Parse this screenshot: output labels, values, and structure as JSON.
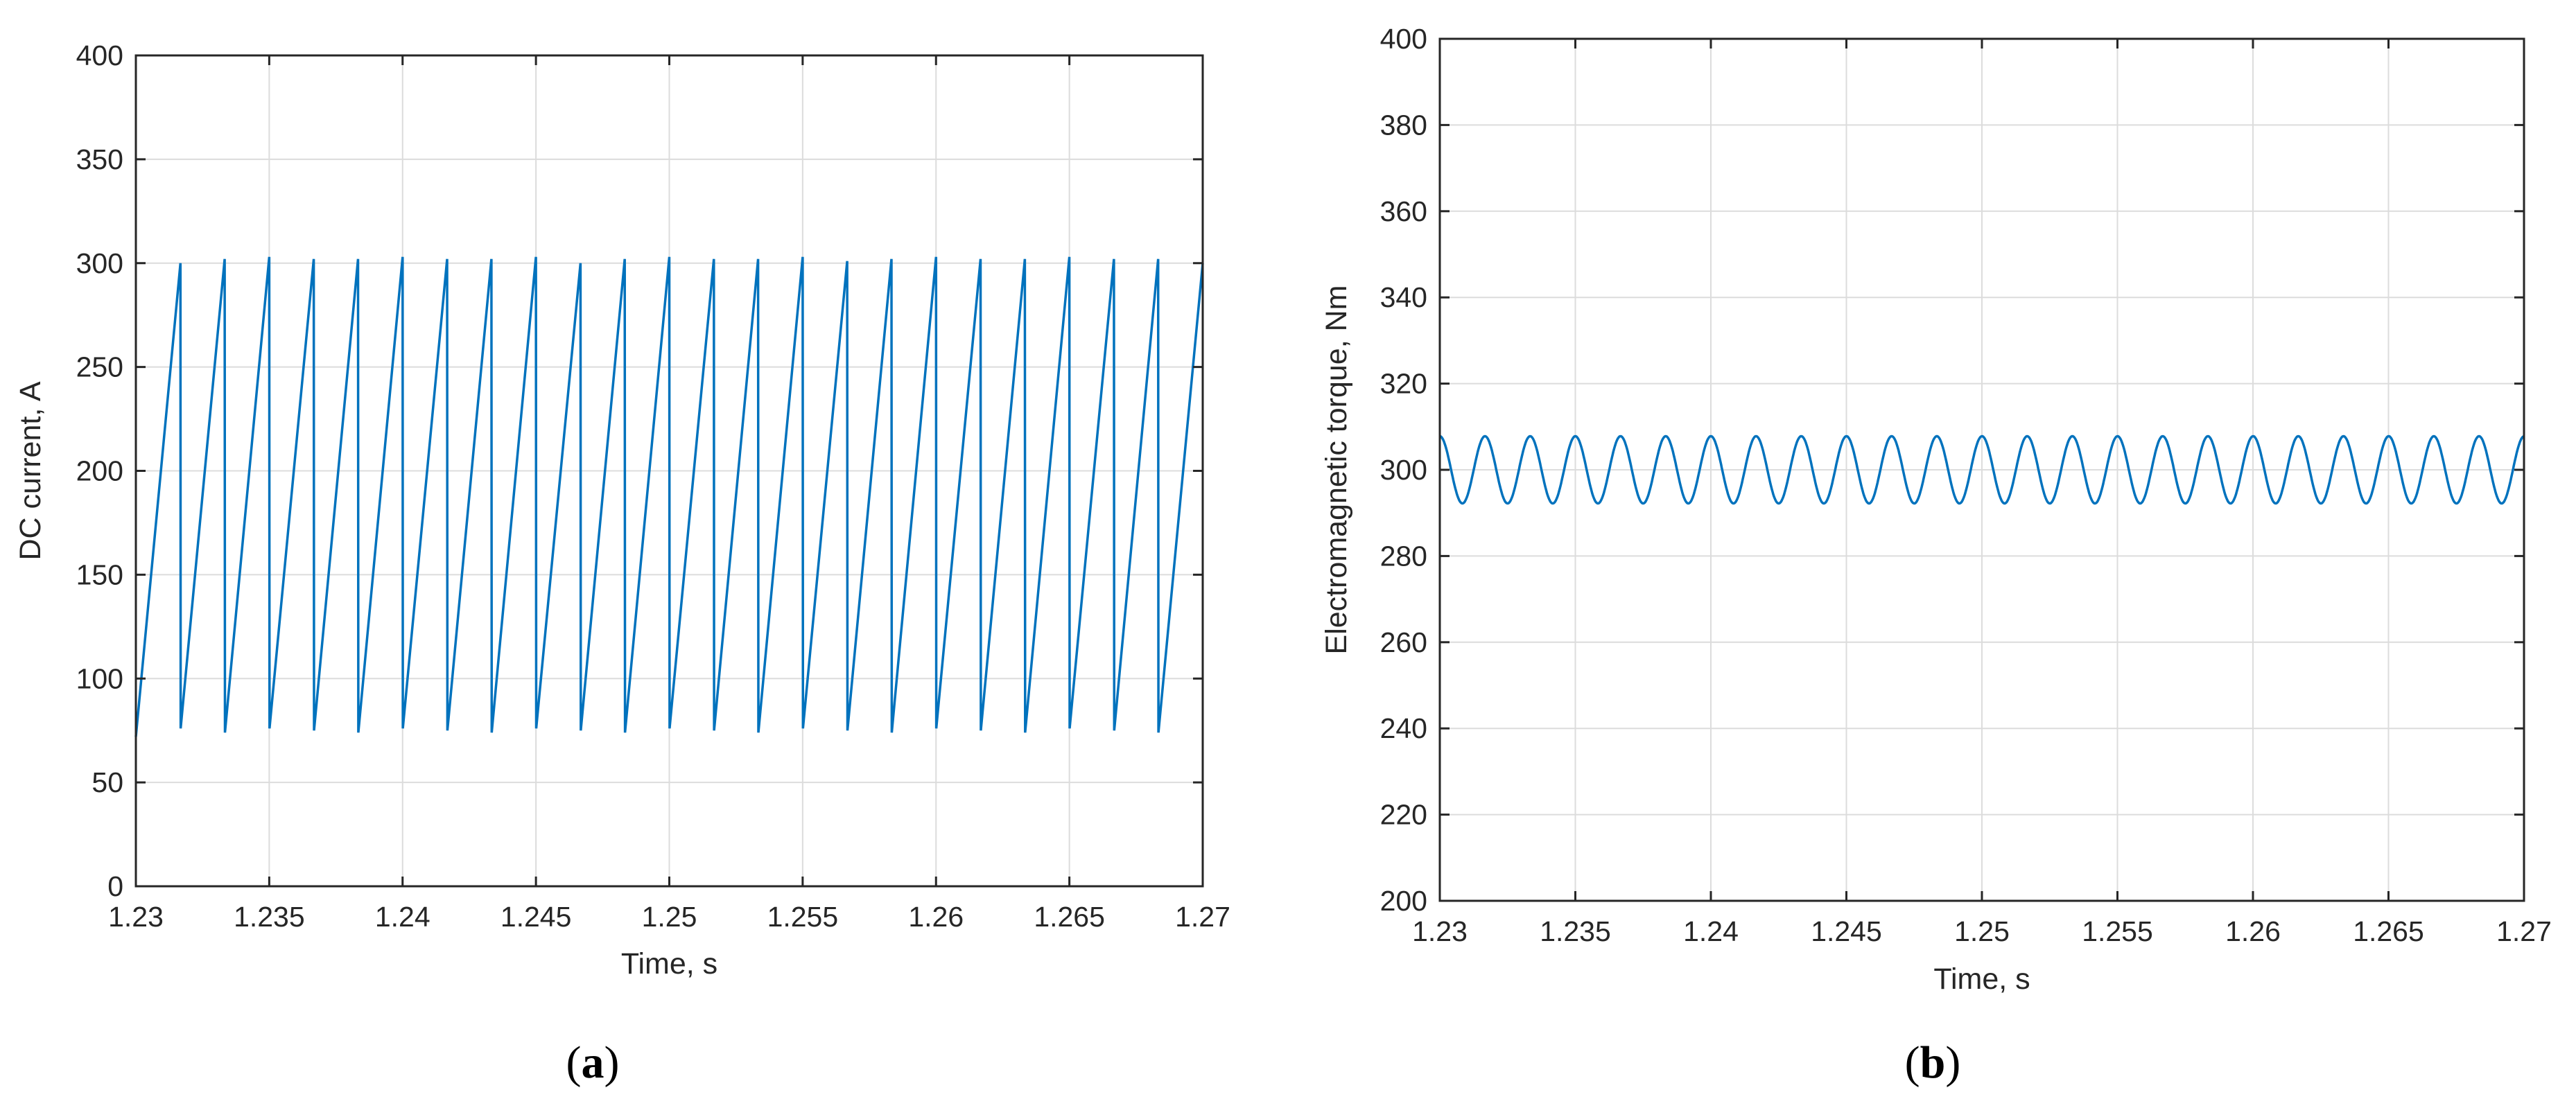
{
  "panels": [
    {
      "label_open": "(",
      "label_letter": "a",
      "label_close": ")"
    },
    {
      "label_open": "(",
      "label_letter": "b",
      "label_close": ")"
    }
  ],
  "colors": {
    "series": "#0072bd",
    "grid": "#dcdcdc",
    "axis": "#262626"
  },
  "chart_data": [
    {
      "type": "line",
      "xlabel": "Time, s",
      "ylabel": "DC current, A",
      "xlim": [
        1.23,
        1.27
      ],
      "ylim": [
        0,
        400
      ],
      "xticks": [
        1.23,
        1.235,
        1.24,
        1.245,
        1.25,
        1.255,
        1.26,
        1.265,
        1.27
      ],
      "xtick_labels": [
        "1.23",
        "1.235",
        "1.24",
        "1.245",
        "1.25",
        "1.255",
        "1.26",
        "1.265",
        "1.27"
      ],
      "yticks": [
        0,
        50,
        100,
        150,
        200,
        250,
        300,
        350,
        400
      ],
      "ytick_labels": [
        "0",
        "50",
        "100",
        "150",
        "200",
        "250",
        "300",
        "350",
        "400"
      ],
      "grid": true,
      "series": [
        {
          "x": [
            1.23,
            1.23167,
            1.23168,
            1.23333,
            1.23334,
            1.235,
            1.23501,
            1.23667,
            1.23668,
            1.23833,
            1.23834,
            1.24,
            1.24001,
            1.24167,
            1.24168,
            1.24333,
            1.24334,
            1.245,
            1.24501,
            1.24667,
            1.24668,
            1.24833,
            1.24834,
            1.25,
            1.25001,
            1.25167,
            1.25168,
            1.25333,
            1.25334,
            1.255,
            1.25501,
            1.25667,
            1.25668,
            1.25833,
            1.25834,
            1.26,
            1.26001,
            1.26167,
            1.26168,
            1.26333,
            1.26334,
            1.265,
            1.26501,
            1.26667,
            1.26668,
            1.26833,
            1.26834,
            1.27
          ],
          "y": [
            72,
            300,
            76,
            302,
            74,
            303,
            76,
            302,
            75,
            302,
            74,
            303,
            76,
            302,
            75,
            302,
            74,
            303,
            76,
            300,
            75,
            302,
            74,
            303,
            76,
            302,
            75,
            302,
            74,
            303,
            76,
            301,
            75,
            302,
            74,
            303,
            76,
            302,
            75,
            302,
            74,
            303,
            76,
            302,
            75,
            302,
            74,
            300
          ]
        }
      ]
    },
    {
      "type": "line",
      "xlabel": "Time, s",
      "ylabel": "Electromagnetic torque, Nm",
      "xlim": [
        1.23,
        1.27
      ],
      "ylim": [
        200,
        400
      ],
      "xticks": [
        1.23,
        1.235,
        1.24,
        1.245,
        1.25,
        1.255,
        1.26,
        1.265,
        1.27
      ],
      "xtick_labels": [
        "1.23",
        "1.235",
        "1.24",
        "1.245",
        "1.25",
        "1.255",
        "1.26",
        "1.265",
        "1.27"
      ],
      "yticks": [
        200,
        220,
        240,
        260,
        280,
        300,
        320,
        340,
        360,
        380,
        400
      ],
      "ytick_labels": [
        "200",
        "220",
        "240",
        "260",
        "280",
        "300",
        "320",
        "340",
        "360",
        "380",
        "400"
      ],
      "grid": true,
      "series": [
        {
          "waveform": "sinusoid",
          "mean": 300,
          "amplitude": 7.8,
          "period": 0.001667,
          "phase_deg": 90,
          "note_peak": 308,
          "note_trough": 292
        }
      ]
    }
  ]
}
